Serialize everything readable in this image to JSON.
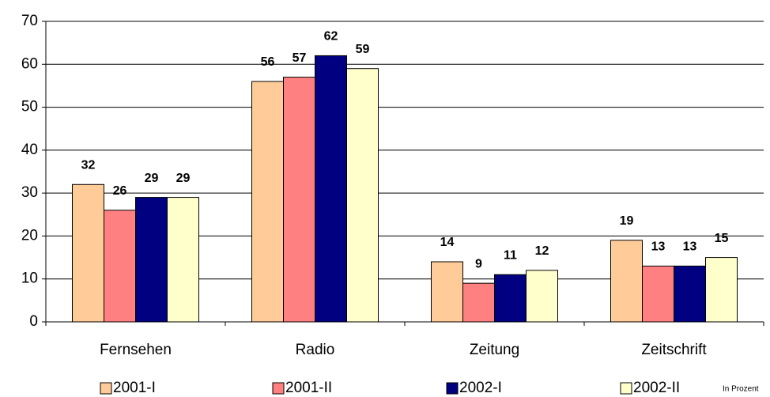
{
  "chart_data": {
    "type": "bar",
    "categories": [
      "Fernsehen",
      "Radio",
      "Zeitung",
      "Zeitschrift"
    ],
    "series": [
      {
        "name": "2001-I",
        "color": "#ffcc99",
        "values": [
          32,
          56,
          14,
          19
        ]
      },
      {
        "name": "2001-II",
        "color": "#ff8080",
        "values": [
          26,
          57,
          9,
          13
        ]
      },
      {
        "name": "2002-I",
        "color": "#000080",
        "values": [
          29,
          62,
          11,
          13
        ]
      },
      {
        "name": "2002-II",
        "color": "#ffffcc",
        "values": [
          29,
          59,
          12,
          15
        ]
      }
    ],
    "ylim": [
      0,
      70
    ],
    "yticks": [
      0,
      10,
      20,
      30,
      40,
      50,
      60,
      70
    ],
    "grid": true,
    "legend": "bottom",
    "annotation": "In Prozent"
  }
}
